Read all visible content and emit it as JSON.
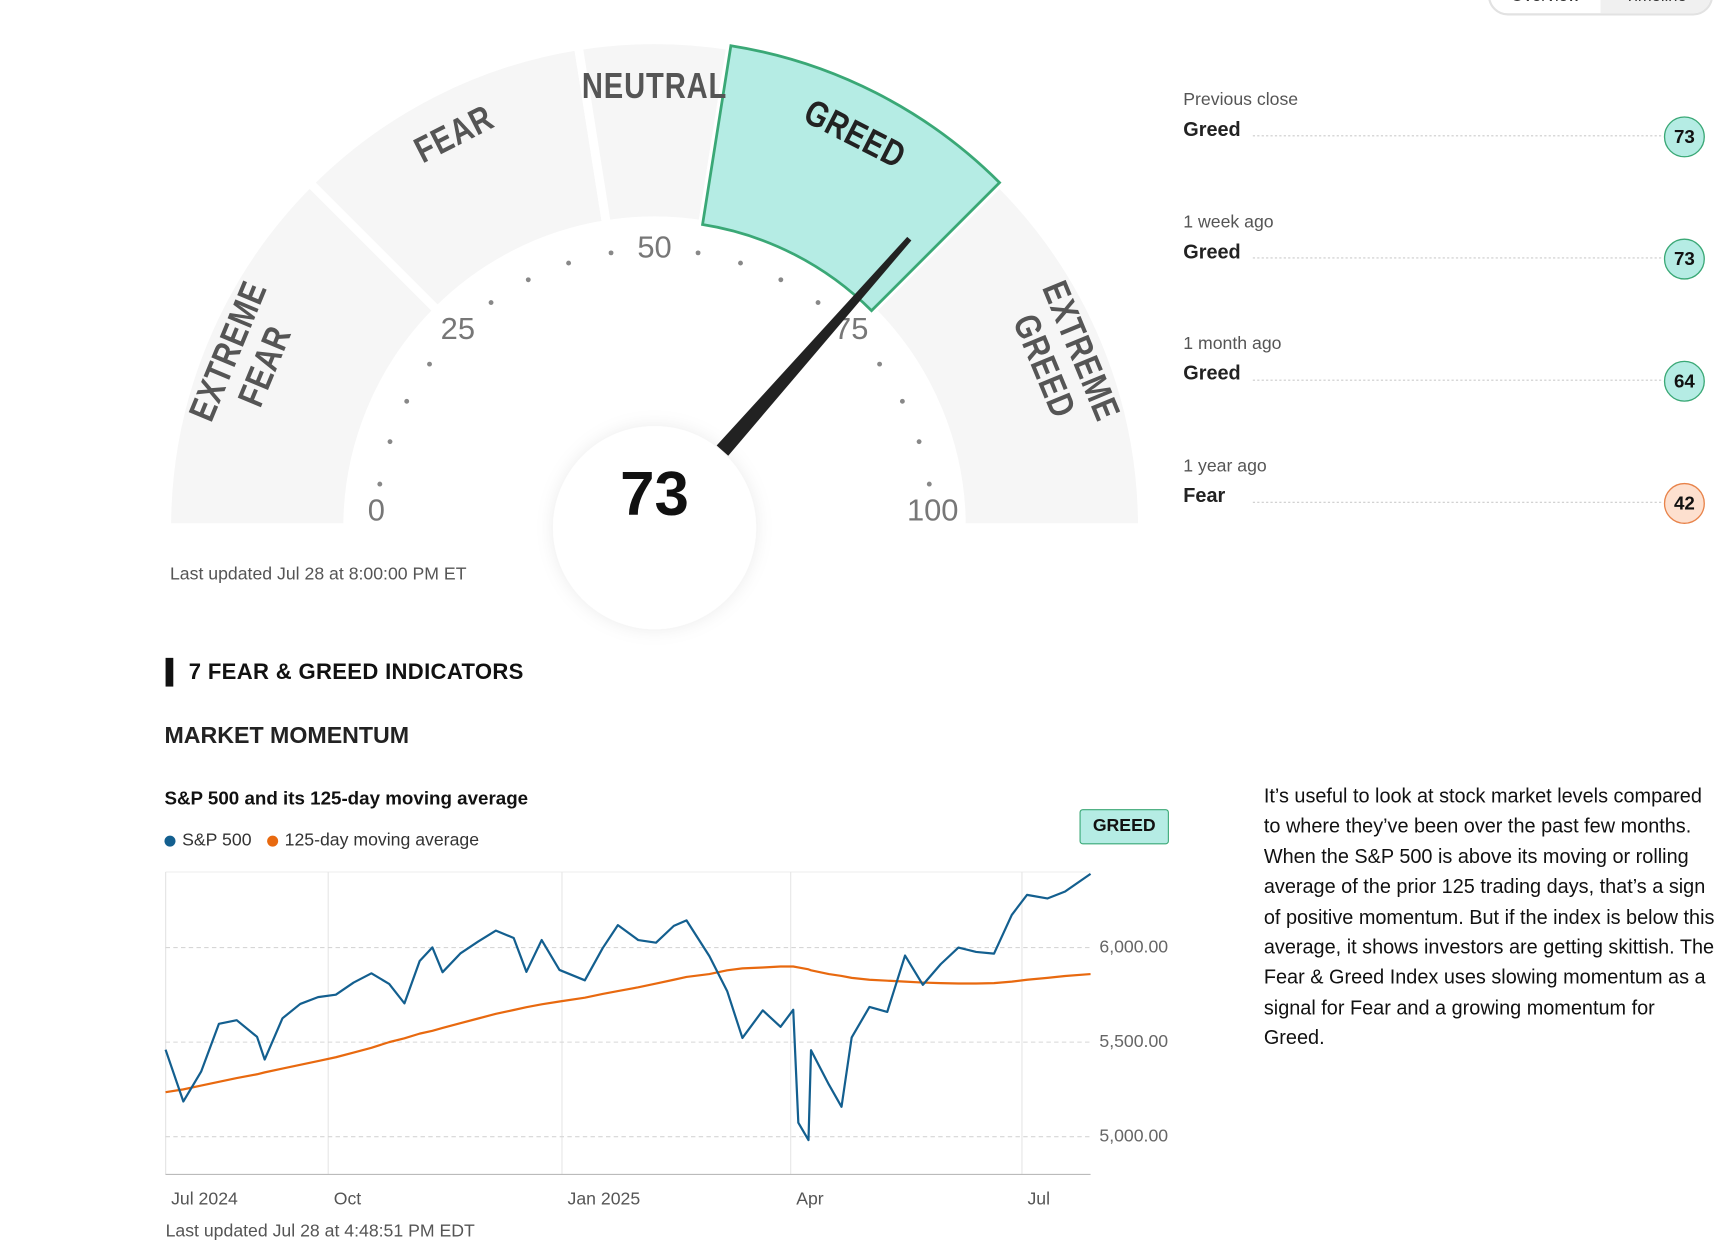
{
  "header": {
    "tabs": [
      "Overview",
      "Timeline"
    ]
  },
  "gauge": {
    "score": 73,
    "segments": [
      {
        "lines": [
          "EXTREME",
          "FEAR"
        ],
        "from": 0,
        "to": 25
      },
      {
        "lines": [
          "FEAR"
        ],
        "from": 25,
        "to": 45
      },
      {
        "lines": [
          "NEUTRAL"
        ],
        "from": 45,
        "to": 55
      },
      {
        "lines": [
          "GREED"
        ],
        "from": 55,
        "to": 75
      },
      {
        "lines": [
          "EXTREME",
          "GREED"
        ],
        "from": 75,
        "to": 100
      }
    ],
    "ticks": [
      0,
      25,
      50,
      75,
      100
    ],
    "fill": "#f6f6f6",
    "active_fill": "#b5ece4",
    "active_stroke": "#3aa876",
    "updated": "Last updated Jul 28 at 8:00:00 PM ET"
  },
  "history": [
    {
      "label": "Previous close",
      "rating": "Greed",
      "value": 73,
      "fill": "#b5ece4",
      "stroke": "#3aa876"
    },
    {
      "label": "1 week ago",
      "rating": "Greed",
      "value": 73,
      "fill": "#b5ece4",
      "stroke": "#3aa876"
    },
    {
      "label": "1 month ago",
      "rating": "Greed",
      "value": 64,
      "fill": "#b5ece4",
      "stroke": "#3aa876"
    },
    {
      "label": "1 year ago",
      "rating": "Fear",
      "value": 42,
      "fill": "#fde0cf",
      "stroke": "#e8834a"
    }
  ],
  "section_title": "7 FEAR & GREED INDICATORS",
  "indicator": "MARKET MOMENTUM",
  "description": "It’s useful to look at stock market levels compared to where they’ve been over the past few months. When the S&P 500 is above its moving or rolling average of the prior 125 trading days, that’s a sign of positive momentum. But if the index is below this average, it shows investors are getting skittish. The Fear & Greed Index uses slowing momentum as a signal for Fear and a growing momentum for Greed.",
  "chart_data": {
    "type": "line",
    "title": "S&P 500 and its 125-day moving average",
    "rating": "GREED",
    "rating_color": "#b5ece4",
    "updated": "Last updated Jul 28 at 4:48:51 PM EDT",
    "x": [
      "2024-07-29",
      "2024-08-05",
      "2024-08-12",
      "2024-08-19",
      "2024-08-26",
      "2024-09-03",
      "2024-09-06",
      "2024-09-13",
      "2024-09-20",
      "2024-09-27",
      "2024-10-04",
      "2024-10-11",
      "2024-10-18",
      "2024-10-25",
      "2024-10-31",
      "2024-11-06",
      "2024-11-11",
      "2024-11-15",
      "2024-11-22",
      "2024-11-29",
      "2024-12-06",
      "2024-12-13",
      "2024-12-18",
      "2024-12-24",
      "2024-12-31",
      "2025-01-10",
      "2025-01-17",
      "2025-01-23",
      "2025-01-31",
      "2025-02-07",
      "2025-02-14",
      "2025-02-19",
      "2025-02-28",
      "2025-03-07",
      "2025-03-13",
      "2025-03-21",
      "2025-03-28",
      "2025-04-02",
      "2025-04-04",
      "2025-04-08",
      "2025-04-09",
      "2025-04-16",
      "2025-04-21",
      "2025-04-25",
      "2025-05-02",
      "2025-05-09",
      "2025-05-16",
      "2025-05-23",
      "2025-05-30",
      "2025-06-06",
      "2025-06-13",
      "2025-06-20",
      "2025-06-27",
      "2025-07-03",
      "2025-07-11",
      "2025-07-18",
      "2025-07-28"
    ],
    "series": [
      {
        "name": "S&P 500",
        "color": "#135f8f",
        "values": [
          5460,
          5186,
          5344,
          5597,
          5616,
          5528,
          5408,
          5626,
          5702,
          5738,
          5751,
          5815,
          5864,
          5808,
          5705,
          5929,
          6001,
          5870,
          5969,
          6032,
          6090,
          6051,
          5872,
          6040,
          5882,
          5827,
          5997,
          6119,
          6040,
          6026,
          6115,
          6144,
          5955,
          5770,
          5522,
          5668,
          5581,
          5671,
          5074,
          4982,
          5457,
          5276,
          5158,
          5525,
          5686,
          5660,
          5958,
          5803,
          5912,
          6000,
          5977,
          5968,
          6173,
          6279,
          6260,
          6297,
          6390
        ]
      },
      {
        "name": "125-day moving average",
        "color": "#e8690f",
        "values": [
          5235,
          5250,
          5270,
          5290,
          5310,
          5330,
          5340,
          5360,
          5380,
          5400,
          5420,
          5445,
          5470,
          5500,
          5520,
          5545,
          5560,
          5575,
          5600,
          5625,
          5650,
          5670,
          5685,
          5700,
          5715,
          5735,
          5755,
          5770,
          5790,
          5810,
          5830,
          5845,
          5860,
          5880,
          5890,
          5895,
          5900,
          5900,
          5895,
          5885,
          5880,
          5860,
          5850,
          5840,
          5830,
          5825,
          5820,
          5815,
          5812,
          5810,
          5810,
          5812,
          5820,
          5830,
          5840,
          5850,
          5860
        ]
      }
    ],
    "xlim": [
      "2024-07-29",
      "2025-07-28"
    ],
    "xticks": [
      {
        "value": "2024-07-29",
        "label": "Jul 2024"
      },
      {
        "value": "2024-10-01",
        "label": "Oct"
      },
      {
        "value": "2025-01-01",
        "label": "Jan 2025"
      },
      {
        "value": "2025-04-01",
        "label": "Apr"
      },
      {
        "value": "2025-07-01",
        "label": "Jul"
      }
    ],
    "ylim": [
      4800,
      6400
    ],
    "yticks": [
      {
        "value": 5000,
        "label": "5,000.00"
      },
      {
        "value": 5500,
        "label": "5,500.00"
      },
      {
        "value": 6000,
        "label": "6,000.00"
      }
    ],
    "grid": true
  }
}
